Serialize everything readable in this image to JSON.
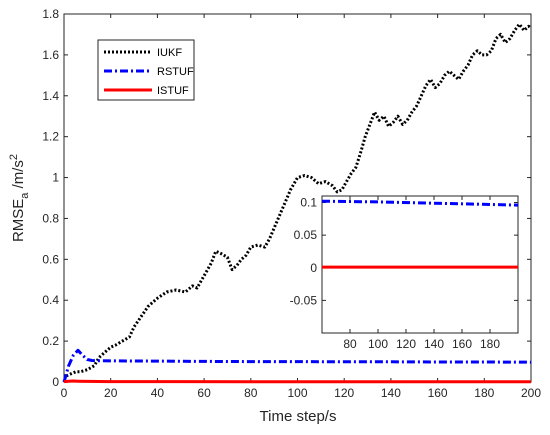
{
  "chart_data": {
    "type": "line",
    "xlabel": "Time step/s",
    "ylabel_main": "RMSE",
    "ylabel_sub": "a",
    "ylabel_unit": " /m/s",
    "ylabel_sup": "2",
    "xlim": [
      0,
      200
    ],
    "ylim": [
      0,
      1.8
    ],
    "xticks": [
      "0",
      "20",
      "40",
      "60",
      "80",
      "100",
      "120",
      "140",
      "160",
      "180",
      "200"
    ],
    "yticks": [
      "0",
      "0.2",
      "0.4",
      "0.6",
      "0.8",
      "1",
      "1.2",
      "1.4",
      "1.6",
      "1.8"
    ],
    "grid": false,
    "legend_position": "top-left",
    "series": [
      {
        "name": "IUKF",
        "color": "#000000",
        "style": "dotted",
        "x": [
          1,
          3,
          5,
          7,
          10,
          13,
          15,
          18,
          20,
          22,
          25,
          28,
          30,
          33,
          36,
          40,
          44,
          48,
          52,
          55,
          57,
          60,
          63,
          65,
          67,
          70,
          72,
          74,
          76,
          78,
          80,
          83,
          86,
          88,
          91,
          94,
          97,
          100,
          103,
          106,
          109,
          112,
          115,
          117,
          119,
          121,
          123,
          125,
          127,
          129,
          131,
          133,
          135,
          137,
          139,
          141,
          143,
          145,
          147,
          149,
          151,
          153,
          155,
          157,
          159,
          161,
          163,
          165,
          167,
          169,
          171,
          173,
          175,
          177,
          179,
          181,
          183,
          185,
          187,
          189,
          191,
          193,
          195,
          197,
          199,
          200
        ],
        "values": [
          0.03,
          0.04,
          0.05,
          0.05,
          0.06,
          0.08,
          0.12,
          0.15,
          0.17,
          0.18,
          0.2,
          0.22,
          0.27,
          0.32,
          0.37,
          0.41,
          0.44,
          0.45,
          0.44,
          0.47,
          0.46,
          0.52,
          0.58,
          0.64,
          0.63,
          0.61,
          0.55,
          0.57,
          0.6,
          0.62,
          0.66,
          0.67,
          0.66,
          0.7,
          0.78,
          0.86,
          0.94,
          1.0,
          1.01,
          1.0,
          0.97,
          0.98,
          0.96,
          0.93,
          0.94,
          0.98,
          1.02,
          1.05,
          1.12,
          1.2,
          1.26,
          1.32,
          1.28,
          1.3,
          1.25,
          1.27,
          1.3,
          1.26,
          1.28,
          1.32,
          1.35,
          1.4,
          1.45,
          1.48,
          1.44,
          1.46,
          1.5,
          1.52,
          1.5,
          1.48,
          1.52,
          1.55,
          1.6,
          1.62,
          1.6,
          1.6,
          1.62,
          1.68,
          1.7,
          1.66,
          1.68,
          1.72,
          1.75,
          1.72,
          1.74,
          1.73
        ]
      },
      {
        "name": "RSTUF",
        "color": "#0000ff",
        "style": "dashdot",
        "x": [
          0,
          2,
          4,
          6,
          8,
          10,
          12,
          15,
          20,
          40,
          60,
          80,
          100,
          120,
          140,
          160,
          180,
          200
        ],
        "values": [
          0.0,
          0.08,
          0.13,
          0.155,
          0.13,
          0.11,
          0.105,
          0.104,
          0.103,
          0.102,
          0.101,
          0.1,
          0.1,
          0.099,
          0.099,
          0.098,
          0.098,
          0.097
        ]
      },
      {
        "name": "ISTUF",
        "color": "#ff0000",
        "style": "solid",
        "x": [
          0,
          2,
          4,
          6,
          10,
          20,
          50,
          100,
          150,
          200
        ],
        "values": [
          0.002,
          0.004,
          0.005,
          0.004,
          0.003,
          0.002,
          0.002,
          0.001,
          0.001,
          0.001
        ]
      }
    ],
    "inset": {
      "xlim": [
        60,
        200
      ],
      "ylim": [
        -0.1,
        0.11
      ],
      "xticks": [
        "80",
        "100",
        "120",
        "140",
        "160",
        "180"
      ],
      "yticks": [
        "-0.05",
        "0",
        "0.05",
        "0.1"
      ],
      "series": [
        {
          "name": "RSTUF",
          "color": "#0000ff",
          "style": "dashdot",
          "x": [
            60,
            100,
            140,
            200
          ],
          "values": [
            0.102,
            0.101,
            0.099,
            0.096
          ]
        },
        {
          "name": "ISTUF",
          "color": "#ff0000",
          "style": "solid",
          "x": [
            60,
            200
          ],
          "values": [
            0.001,
            0.001
          ]
        }
      ]
    }
  }
}
